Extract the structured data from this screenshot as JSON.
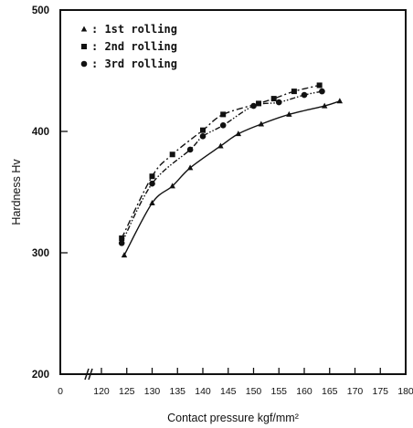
{
  "chart_data": {
    "type": "scatter",
    "xlabel": "Contact pressure  kgf/mm²",
    "ylabel": "Hardness  Hv",
    "xlim": [
      0,
      180
    ],
    "ylim": [
      200,
      500
    ],
    "x_tick_labels": [
      "0",
      "120",
      "125",
      "130",
      "135",
      "140",
      "145",
      "150",
      "155",
      "160",
      "165",
      "170",
      "175",
      "180"
    ],
    "y_tick_labels": [
      "200",
      "300",
      "400",
      "500"
    ],
    "axis_break": "x between 0 and 120",
    "legend_position": "top-left",
    "series": [
      {
        "name": "1st rolling",
        "marker": "triangle",
        "line_style": "solid",
        "x": [
          124.5,
          130,
          134,
          137.5,
          143.5,
          147,
          151.5,
          157,
          164,
          167
        ],
        "y": [
          298,
          341,
          355,
          370,
          388,
          398,
          406,
          414,
          421,
          425
        ]
      },
      {
        "name": "2nd rolling",
        "marker": "square",
        "line_style": "dash-dot",
        "x": [
          124,
          130,
          134,
          140,
          144,
          151,
          154,
          158,
          163
        ],
        "y": [
          312,
          363,
          381,
          401,
          414,
          423,
          427,
          433,
          438
        ]
      },
      {
        "name": "3rd rolling",
        "marker": "circle",
        "line_style": "dash-dot-dot",
        "x": [
          124,
          130,
          137.5,
          140,
          144,
          150,
          155,
          160,
          163.5
        ],
        "y": [
          308,
          357,
          385,
          396,
          405,
          421,
          424,
          430,
          433
        ]
      }
    ]
  }
}
